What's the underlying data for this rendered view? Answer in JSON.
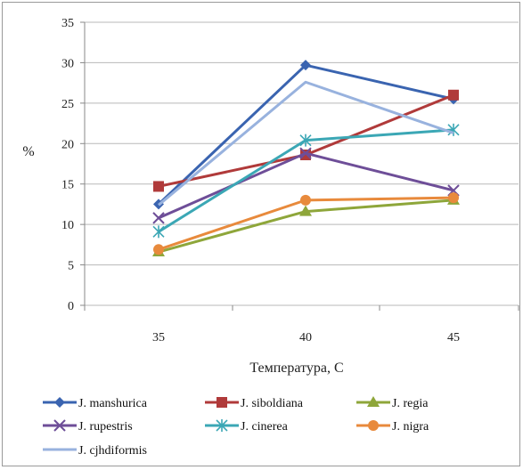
{
  "chart_data": {
    "type": "line",
    "x": [
      35,
      40,
      45
    ],
    "xlabel": "Температура, С",
    "ylabel": "%",
    "ylim": [
      0,
      35
    ],
    "yticks": [
      0,
      5,
      10,
      15,
      20,
      25,
      30,
      35
    ],
    "grid": "horizontal",
    "legend_position": "bottom",
    "series": [
      {
        "name": "J. manshurica",
        "values": [
          12.5,
          29.7,
          25.5
        ],
        "color": "#3a64b0",
        "marker": "diamond"
      },
      {
        "name": "J. siboldiana",
        "values": [
          14.7,
          18.6,
          26.0
        ],
        "color": "#b03a3a",
        "marker": "square"
      },
      {
        "name": "J. regia",
        "values": [
          6.6,
          11.6,
          13.0
        ],
        "color": "#8ea63a",
        "marker": "triangle"
      },
      {
        "name": "J. rupestris",
        "values": [
          10.8,
          18.8,
          14.2
        ],
        "color": "#6e4e98",
        "marker": "x"
      },
      {
        "name": "J. cinerea",
        "values": [
          9.1,
          20.4,
          21.7
        ],
        "color": "#3ba7b5",
        "marker": "star"
      },
      {
        "name": "J. nigra",
        "values": [
          6.9,
          13.0,
          13.3
        ],
        "color": "#e88a3c",
        "marker": "circle"
      },
      {
        "name": "J. cjhdiformis",
        "values": [
          12.4,
          27.6,
          21.3
        ],
        "color": "#98b2de",
        "marker": "none"
      }
    ]
  }
}
